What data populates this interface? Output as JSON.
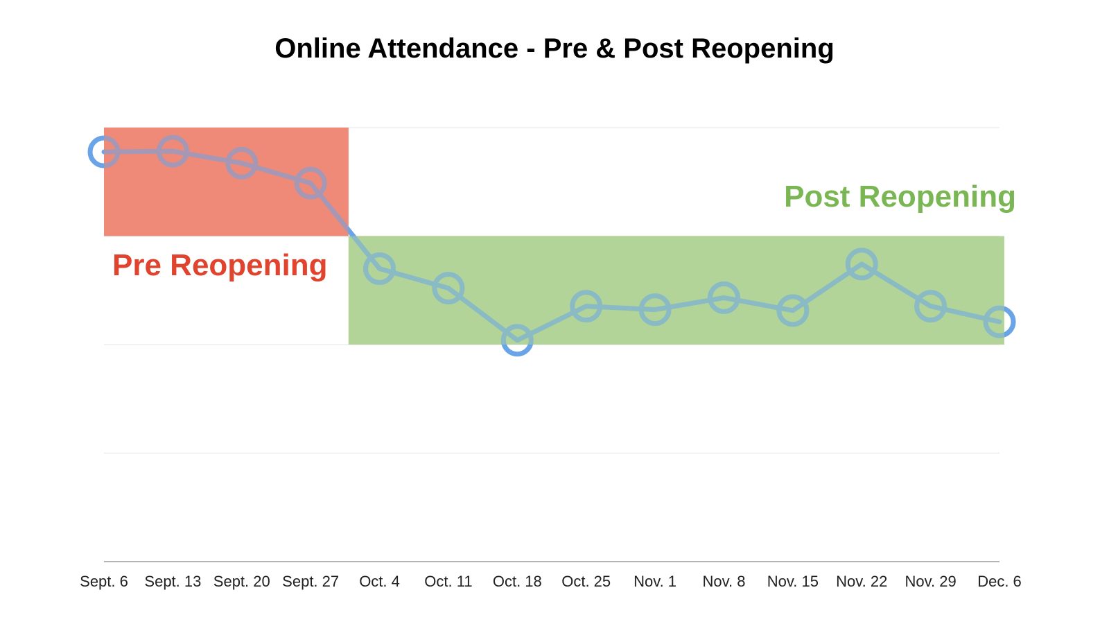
{
  "chart_data": {
    "type": "line",
    "title": "Online Attendance - Pre & Post Reopening",
    "xlabel": "",
    "ylabel": "",
    "categories": [
      "Sept. 6",
      "Sept. 13",
      "Sept. 20",
      "Sept. 27",
      "Oct. 4",
      "Oct. 11",
      "Oct. 18",
      "Oct. 25",
      "Nov. 1",
      "Nov. 8",
      "Nov. 15",
      "Nov. 22",
      "Nov. 29",
      "Dec. 6"
    ],
    "series": [
      {
        "values": [
          88.8,
          89.1,
          83.6,
          74.4,
          35.0,
          26.0,
          2.0,
          17.7,
          16.1,
          21.6,
          15.7,
          37.1,
          17.7,
          10.5
        ]
      }
    ],
    "ylim": [
      -100,
      100
    ],
    "y_tick_labels_shown": false,
    "grid": true,
    "regions": [
      {
        "label": "Pre Reopening",
        "color": "#f08a78",
        "label_color": "#e0442e",
        "x_start": 0,
        "x_end": 3.55,
        "y_low": 50,
        "y_high": 100
      },
      {
        "label": "Post Reopening",
        "color": "#b2d49a",
        "label_color": "#7ab653",
        "x_start": 3.55,
        "x_end": 13.07,
        "y_low": 0,
        "y_high": 50
      }
    ],
    "line_color": "#6aa4e8"
  }
}
